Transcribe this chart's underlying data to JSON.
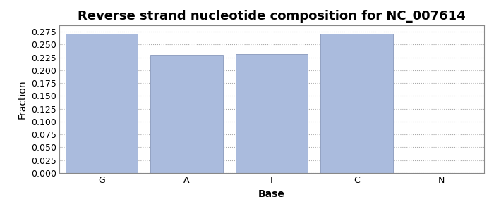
{
  "title": "Reverse strand nucleotide composition for NC_007614",
  "xlabel": "Base",
  "ylabel": "Fraction",
  "categories": [
    "G",
    "A",
    "T",
    "C",
    "N"
  ],
  "values": [
    0.271,
    0.23,
    0.232,
    0.271,
    0.0
  ],
  "bar_color": "#aabbdd",
  "bar_edgecolor": "#8899bb",
  "ylim": [
    0.0,
    0.2875
  ],
  "yticks": [
    0.0,
    0.025,
    0.05,
    0.075,
    0.1,
    0.125,
    0.15,
    0.175,
    0.2,
    0.225,
    0.25,
    0.275
  ],
  "background_color": "#ffffff",
  "grid_color": "#aaaaaa",
  "title_fontsize": 13,
  "axis_fontsize": 10,
  "tick_fontsize": 9,
  "bar_width": 0.85
}
